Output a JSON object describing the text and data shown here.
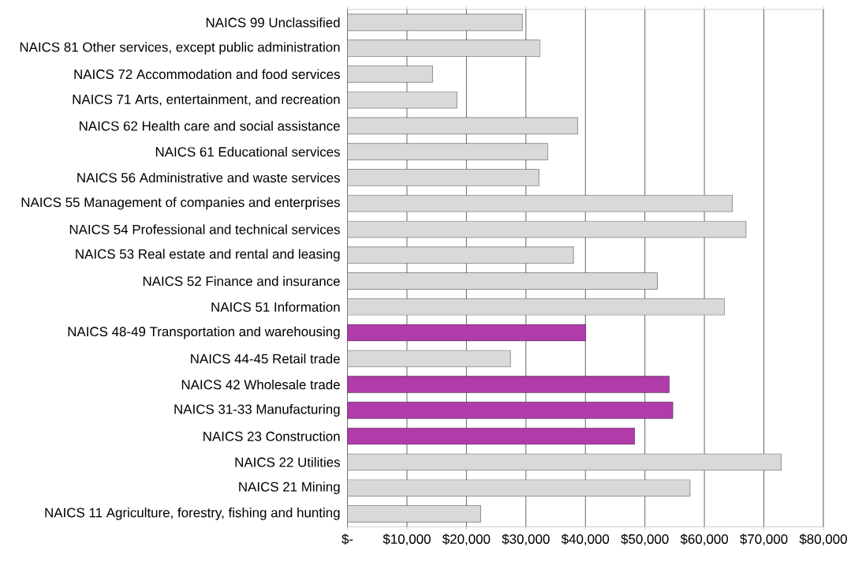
{
  "chart_data": {
    "type": "bar",
    "orientation": "horizontal",
    "categories": [
      "NAICS 99 Unclassified",
      "NAICS 81 Other services, except public administration",
      "NAICS 72 Accommodation and food services",
      "NAICS 71 Arts, entertainment, and recreation",
      "NAICS 62 Health care and social assistance",
      "NAICS 61 Educational services",
      "NAICS 56 Administrative and waste services",
      "NAICS 55 Management of companies and enterprises",
      "NAICS 54 Professional and technical services",
      "NAICS 53 Real estate and rental and leasing",
      "NAICS 52 Finance and insurance",
      "NAICS 51 Information",
      "NAICS 48-49 Transportation and warehousing",
      "NAICS 44-45 Retail trade",
      "NAICS 42 Wholesale trade",
      "NAICS 31-33 Manufacturing",
      "NAICS 23 Construction",
      "NAICS 22 Utilities",
      "NAICS 21 Mining",
      "NAICS 11 Agriculture, forestry, fishing and hunting"
    ],
    "values": [
      29400,
      32400,
      14300,
      18400,
      38700,
      33700,
      32200,
      64700,
      67000,
      38000,
      52100,
      63400,
      40100,
      27400,
      54100,
      54700,
      48300,
      72900,
      57600,
      22400
    ],
    "colors": [
      "#d9d9d9",
      "#d9d9d9",
      "#d9d9d9",
      "#d9d9d9",
      "#d9d9d9",
      "#d9d9d9",
      "#d9d9d9",
      "#d9d9d9",
      "#d9d9d9",
      "#d9d9d9",
      "#d9d9d9",
      "#d9d9d9",
      "#b03caa",
      "#d9d9d9",
      "#b03caa",
      "#b03caa",
      "#b03caa",
      "#d9d9d9",
      "#d9d9d9",
      "#d9d9d9"
    ],
    "xlim": [
      0,
      80000
    ],
    "xticks": [
      {
        "value": 0,
        "label": "$-"
      },
      {
        "value": 10000,
        "label": "$10,000"
      },
      {
        "value": 20000,
        "label": "$20,000"
      },
      {
        "value": 30000,
        "label": "$30,000"
      },
      {
        "value": 40000,
        "label": "$40,000"
      },
      {
        "value": 50000,
        "label": "$50,000"
      },
      {
        "value": 60000,
        "label": "$60,000"
      },
      {
        "value": 70000,
        "label": "$70,000"
      },
      {
        "value": 80000,
        "label": "$80,000"
      }
    ],
    "grid": "x"
  }
}
